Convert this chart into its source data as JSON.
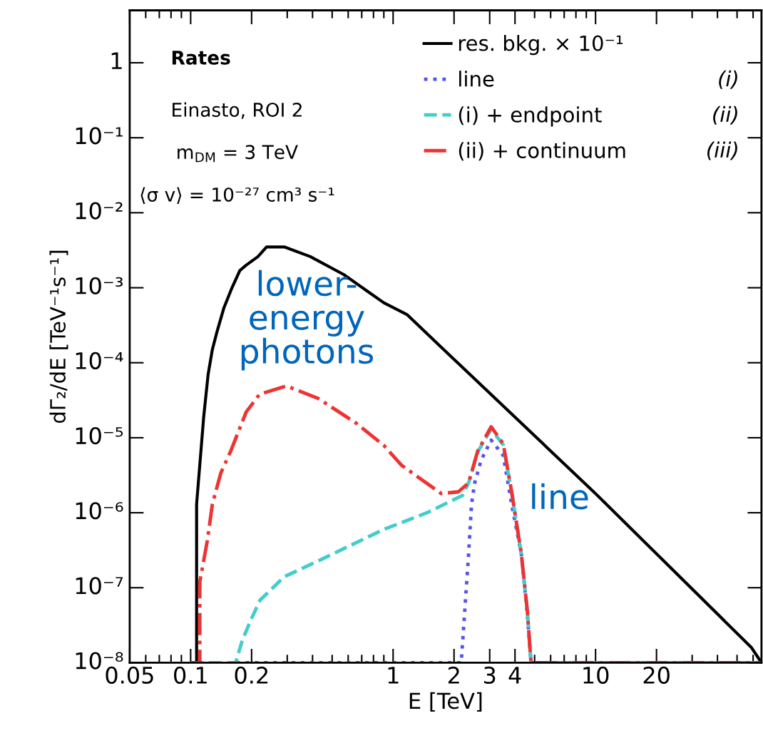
{
  "chart_data": {
    "type": "line",
    "xlabel": "E [TeV]",
    "ylabel": "dΓ₂/dE [TeV⁻¹s⁻¹]",
    "log": "xy",
    "grid": false,
    "legend": "top right",
    "xlim": [
      0.05,
      66
    ],
    "xticks": [
      0.05,
      0.1,
      0.2,
      1,
      2,
      3,
      4,
      10,
      20
    ],
    "ylim": [
      1e-08,
      5
    ],
    "yticks": [
      {
        "value": 1e-08,
        "label": "10⁻⁸"
      },
      {
        "value": 1e-07,
        "label": "10⁻⁷"
      },
      {
        "value": 1e-06,
        "label": "10⁻⁶"
      },
      {
        "value": 1e-05,
        "label": "10⁻⁵"
      },
      {
        "value": 0.0001,
        "label": "10⁻⁴"
      },
      {
        "value": 0.001,
        "label": "10⁻³"
      },
      {
        "value": 0.01,
        "label": "10⁻²"
      },
      {
        "value": 0.1,
        "label": "10⁻¹"
      },
      {
        "value": 1,
        "label": "1"
      }
    ],
    "series": [
      {
        "name": "res. bkg. × 10⁻¹",
        "color": "#000000",
        "line_style": "solid",
        "x": [
          0.107,
          0.107,
          0.116,
          0.122,
          0.128,
          0.135,
          0.146,
          0.16,
          0.175,
          0.188,
          0.215,
          0.237,
          0.29,
          0.39,
          0.57,
          0.9,
          1.17,
          1.94,
          10,
          58.8,
          66
        ],
        "values": [
          1e-08,
          1.3e-06,
          1.9e-05,
          7e-05,
          0.00015,
          0.00026,
          0.00054,
          0.001,
          0.0017,
          0.002,
          0.0026,
          0.0035,
          0.0035,
          0.0026,
          0.0015,
          0.00063,
          0.00044,
          0.00012,
          1.8e-06,
          1.6e-08,
          1e-08
        ]
      },
      {
        "name": "line",
        "color": "#5555ee",
        "line_style": "dotted",
        "x": [
          0.1,
          2.17,
          2.27,
          2.36,
          2.44,
          2.53,
          2.72,
          3.05,
          3.5,
          3.85,
          4.3,
          4.6,
          4.8,
          66
        ],
        "values": [
          1e-08,
          1e-08,
          6e-08,
          2.8e-07,
          1.3e-06,
          2.5e-06,
          5e-06,
          9.3e-06,
          5.8e-06,
          1.3e-06,
          2.8e-07,
          4.5e-08,
          1e-08,
          1e-08
        ]
      },
      {
        "name": "(i) + endpoint",
        "color": "#44cccc",
        "line_style": "dashed",
        "x": [
          0.1,
          0.167,
          0.18,
          0.2,
          0.22,
          0.29,
          0.43,
          0.9,
          1.47,
          2.2,
          2.36,
          2.62,
          3.05,
          3.5,
          3.85,
          4.3,
          4.6,
          4.8,
          66
        ],
        "values": [
          1e-08,
          1e-08,
          2e-08,
          3.9e-08,
          6.8e-08,
          1.4e-07,
          2.3e-07,
          6e-07,
          1e-06,
          1.7e-06,
          2.5e-06,
          6.5e-06,
          1.3e-05,
          8e-06,
          1.9e-06,
          2.8e-07,
          5e-08,
          1e-08,
          1e-08
        ]
      },
      {
        "name": "(ii) + continuum",
        "color": "#ee3333",
        "line_style": "dashdot",
        "x": [
          0.1,
          0.111,
          0.111,
          0.121,
          0.128,
          0.141,
          0.158,
          0.188,
          0.219,
          0.298,
          0.43,
          0.66,
          0.9,
          1.1,
          1.73,
          2.1,
          2.36,
          2.62,
          3.05,
          3.5,
          3.85,
          4.3,
          4.6,
          4.8,
          66
        ],
        "values": [
          1e-08,
          1e-08,
          1.2e-07,
          4.3e-07,
          1.3e-06,
          3.4e-06,
          6.7e-06,
          2.2e-05,
          3.8e-05,
          4.9e-05,
          3.3e-05,
          1.55e-05,
          7.9e-06,
          4.3e-06,
          1.8e-06,
          1.9e-06,
          2.5e-06,
          6.7e-06,
          1.4e-05,
          8.3e-06,
          1.9e-06,
          2.8e-07,
          5e-08,
          1e-08,
          1e-08
        ]
      }
    ],
    "annotations": [
      "Rates",
      "Einasto, ROI 2",
      "m$_{DM}$ = 3 TeV",
      "⟨σ v⟩ = 10⁻²⁷ cm³ s⁻¹",
      "lower-\nenergy\nphotons",
      "line",
      "(i)",
      "(ii)",
      "(iii)"
    ]
  }
}
